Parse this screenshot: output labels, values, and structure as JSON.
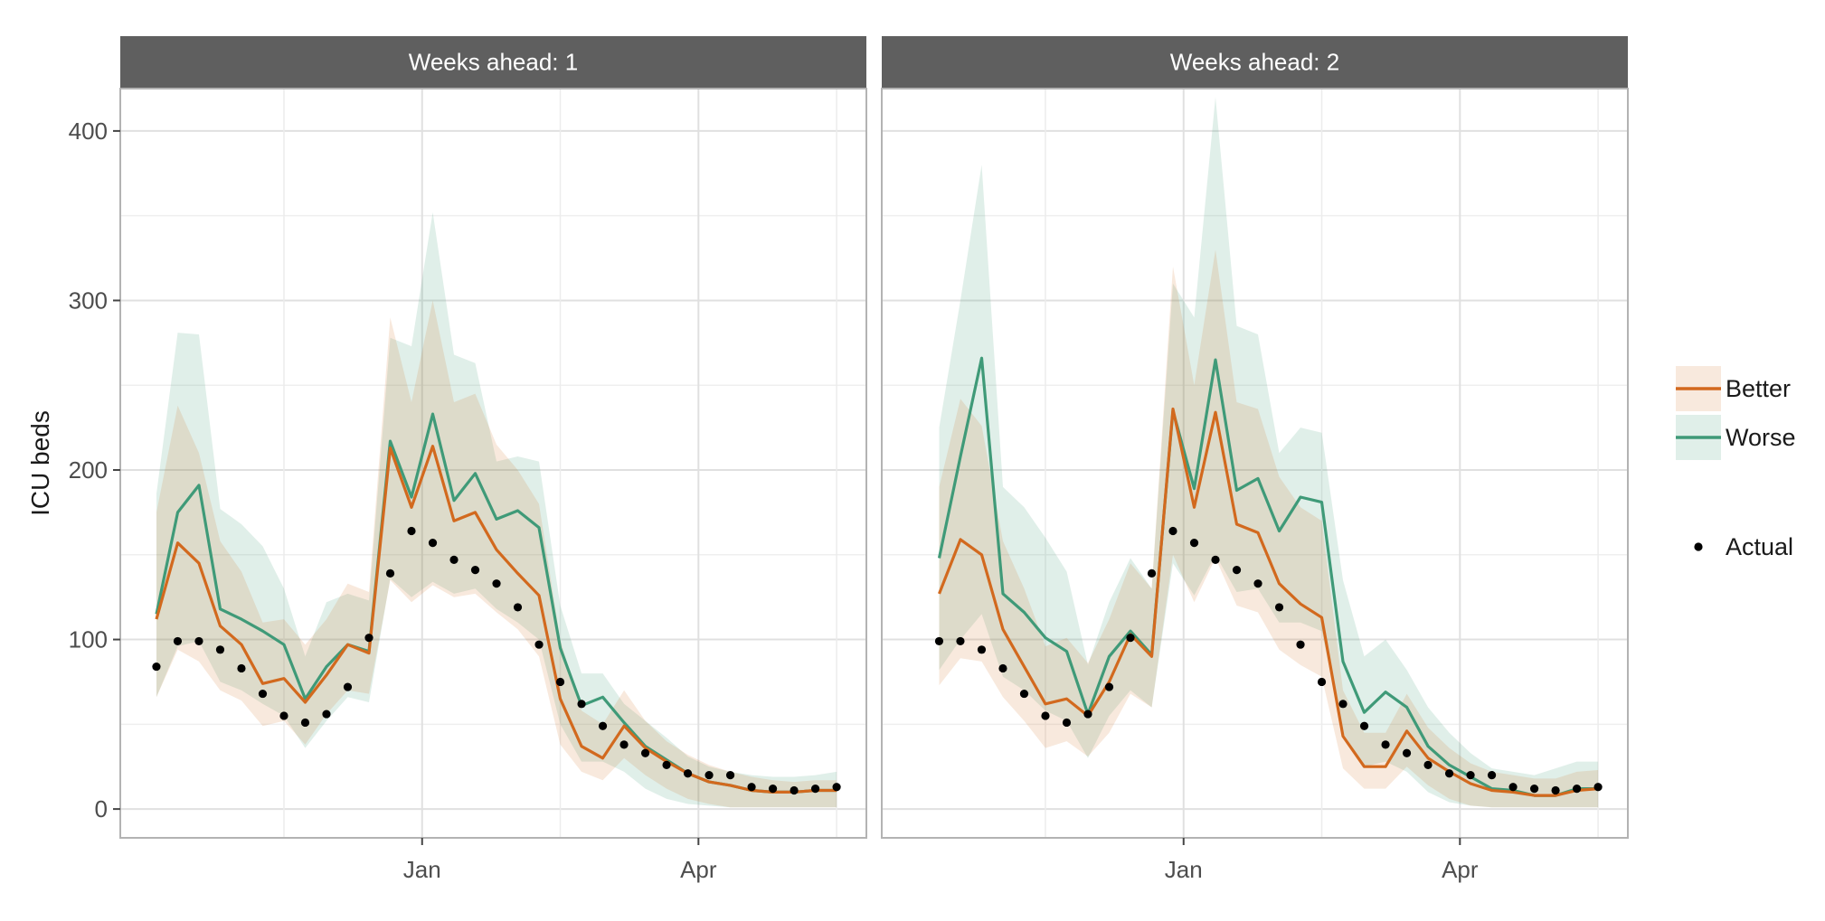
{
  "chart_data": {
    "type": "line",
    "ylabel": "ICU beds",
    "xlabel": "",
    "ylim": [
      -17,
      425
    ],
    "yticks": [
      0,
      100,
      200,
      300,
      400
    ],
    "x_tick_labels": [
      "Jan",
      "Apr"
    ],
    "x_tick_positions_week": [
      9.5,
      22.5
    ],
    "grid": true,
    "legend_position": "right",
    "colors": {
      "better": "#D2691E",
      "worse": "#3F9A78",
      "better_band": "#F3DCC8",
      "worse_band": "#D7EBE4",
      "actual": "#000000",
      "strip": "#5f5f5f",
      "strip_text": "#ffffff",
      "grid": "#e0e0e0",
      "panel_border": "#b3b3b3"
    },
    "legend": {
      "items": [
        {
          "key": "better",
          "label": "Better"
        },
        {
          "key": "worse",
          "label": "Worse"
        },
        {
          "key": "actual",
          "label": "Actual"
        }
      ]
    },
    "actual": {
      "x": [
        -3,
        -2,
        -1,
        0,
        1,
        2,
        3,
        4,
        5,
        6,
        7,
        8,
        9,
        10,
        11,
        12,
        13,
        14,
        15,
        16,
        17,
        18,
        19,
        20,
        21,
        22,
        23,
        24,
        25,
        26,
        27,
        28,
        29
      ],
      "y": [
        84,
        99,
        99,
        94,
        83,
        68,
        55,
        51,
        56,
        72,
        101,
        139,
        164,
        157,
        147,
        141,
        133,
        119,
        97,
        75,
        62,
        49,
        38,
        33,
        26,
        21,
        20,
        20,
        13,
        12,
        11,
        12,
        13
      ]
    },
    "panels": [
      {
        "strip": "Weeks ahead: 1",
        "series": [
          {
            "key": "better",
            "name": "Better",
            "x": [
              -3,
              -2,
              -1,
              0,
              1,
              2,
              3,
              4,
              5,
              6,
              7,
              8,
              9,
              10,
              11,
              12,
              13,
              14,
              15,
              16,
              17,
              18,
              19,
              20,
              21,
              22,
              23,
              24,
              25,
              26,
              27,
              28,
              29
            ],
            "y": [
              112,
              157,
              145,
              108,
              97,
              74,
              77,
              63,
              79,
              97,
              92,
              213,
              178,
              214,
              170,
              175,
              153,
              139,
              126,
              65,
              37,
              30,
              49,
              36,
              28,
              21,
              16,
              14,
              11,
              10,
              10,
              11,
              11
            ],
            "lower": [
              66,
              94,
              87,
              70,
              64,
              49,
              52,
              38,
              56,
              70,
              68,
              135,
              122,
              132,
              125,
              127,
              116,
              106,
              90,
              38,
              22,
              17,
              30,
              20,
              12,
              6,
              3,
              1,
              1,
              1,
              1,
              1,
              1
            ],
            "upper": [
              175,
              238,
              210,
              158,
              140,
              110,
              112,
              97,
              112,
              133,
              128,
              290,
              240,
              300,
              240,
              245,
              215,
              200,
              180,
              100,
              58,
              50,
              70,
              52,
              40,
              32,
              26,
              22,
              19,
              17,
              16,
              17,
              17
            ]
          },
          {
            "key": "worse",
            "name": "Worse",
            "x": [
              -3,
              -2,
              -1,
              0,
              1,
              2,
              3,
              4,
              5,
              6,
              7,
              8,
              9,
              10,
              11,
              12,
              13,
              14,
              15,
              16,
              17,
              18,
              19,
              20,
              21,
              22,
              23,
              24,
              25,
              26,
              27,
              28,
              29
            ],
            "y": [
              115,
              175,
              191,
              118,
              112,
              105,
              97,
              65,
              84,
              97,
              93,
              217,
              184,
              233,
              182,
              198,
              171,
              176,
              166,
              95,
              61,
              66,
              51,
              37,
              29,
              21,
              16,
              14,
              11,
              10,
              10,
              11,
              11
            ],
            "lower": [
              66,
              96,
              99,
              75,
              70,
              62,
              55,
              36,
              52,
              66,
              63,
              136,
              125,
              134,
              127,
              130,
              118,
              110,
              100,
              50,
              28,
              28,
              22,
              12,
              6,
              3,
              2,
              1,
              1,
              1,
              1,
              1,
              1
            ],
            "upper": [
              186,
              281,
              280,
              177,
              168,
              155,
              130,
              90,
              122,
              127,
              123,
              278,
              273,
              352,
              268,
              263,
              205,
              208,
              205,
              120,
              80,
              80,
              62,
              52,
              42,
              31,
              25,
              22,
              20,
              19,
              19,
              20,
              22
            ]
          }
        ]
      },
      {
        "strip": "Weeks ahead: 2",
        "series": [
          {
            "key": "better",
            "name": "Better",
            "x": [
              -2,
              -1,
              0,
              1,
              2,
              3,
              4,
              5,
              6,
              7,
              8,
              9,
              10,
              11,
              12,
              13,
              14,
              15,
              16,
              17,
              18,
              19,
              20,
              21,
              22,
              23,
              24,
              25,
              26,
              27,
              28,
              29
            ],
            "y": [
              127,
              159,
              150,
              106,
              84,
              62,
              65,
              55,
              75,
              103,
              90,
              236,
              178,
              234,
              168,
              163,
              133,
              121,
              113,
              43,
              25,
              25,
              46,
              30,
              22,
              15,
              11,
              10,
              8,
              8,
              11,
              12
            ],
            "lower": [
              73,
              89,
              87,
              66,
              52,
              36,
              40,
              31,
              45,
              68,
              60,
              150,
              122,
              148,
              120,
              116,
              94,
              85,
              78,
              24,
              12,
              12,
              25,
              14,
              6,
              2,
              1,
              1,
              1,
              1,
              1,
              1
            ],
            "upper": [
              190,
              242,
              226,
              158,
              130,
              96,
              101,
              86,
              112,
              145,
              130,
              320,
              250,
              330,
              240,
              236,
              196,
              178,
              170,
              70,
              45,
              45,
              68,
              48,
              36,
              27,
              22,
              20,
              18,
              18,
              22,
              23
            ]
          },
          {
            "key": "worse",
            "name": "Worse",
            "x": [
              -2,
              -1,
              0,
              1,
              2,
              3,
              4,
              5,
              6,
              7,
              8,
              9,
              10,
              11,
              12,
              13,
              14,
              15,
              16,
              17,
              18,
              19,
              20,
              21,
              22,
              23,
              24,
              25,
              26,
              27,
              28,
              29
            ],
            "y": [
              148,
              208,
              266,
              127,
              116,
              101,
              93,
              56,
              90,
              105,
              91,
              235,
              189,
              265,
              188,
              195,
              164,
              184,
              181,
              87,
              57,
              69,
              60,
              37,
              26,
              19,
              12,
              11,
              8,
              8,
              12,
              12
            ],
            "lower": [
              82,
              100,
              115,
              78,
              70,
              58,
              52,
              30,
              55,
              70,
              60,
              145,
              126,
              150,
              128,
              130,
              110,
              110,
              105,
              45,
              25,
              28,
              22,
              10,
              4,
              2,
              1,
              1,
              1,
              1,
              1,
              1
            ],
            "upper": [
              225,
              300,
              380,
              190,
              178,
              160,
              140,
              85,
              122,
              148,
              130,
              310,
              290,
              420,
              285,
              280,
              210,
              225,
              222,
              135,
              90,
              100,
              82,
              60,
              45,
              33,
              24,
              22,
              20,
              24,
              28,
              28
            ]
          }
        ]
      }
    ]
  }
}
